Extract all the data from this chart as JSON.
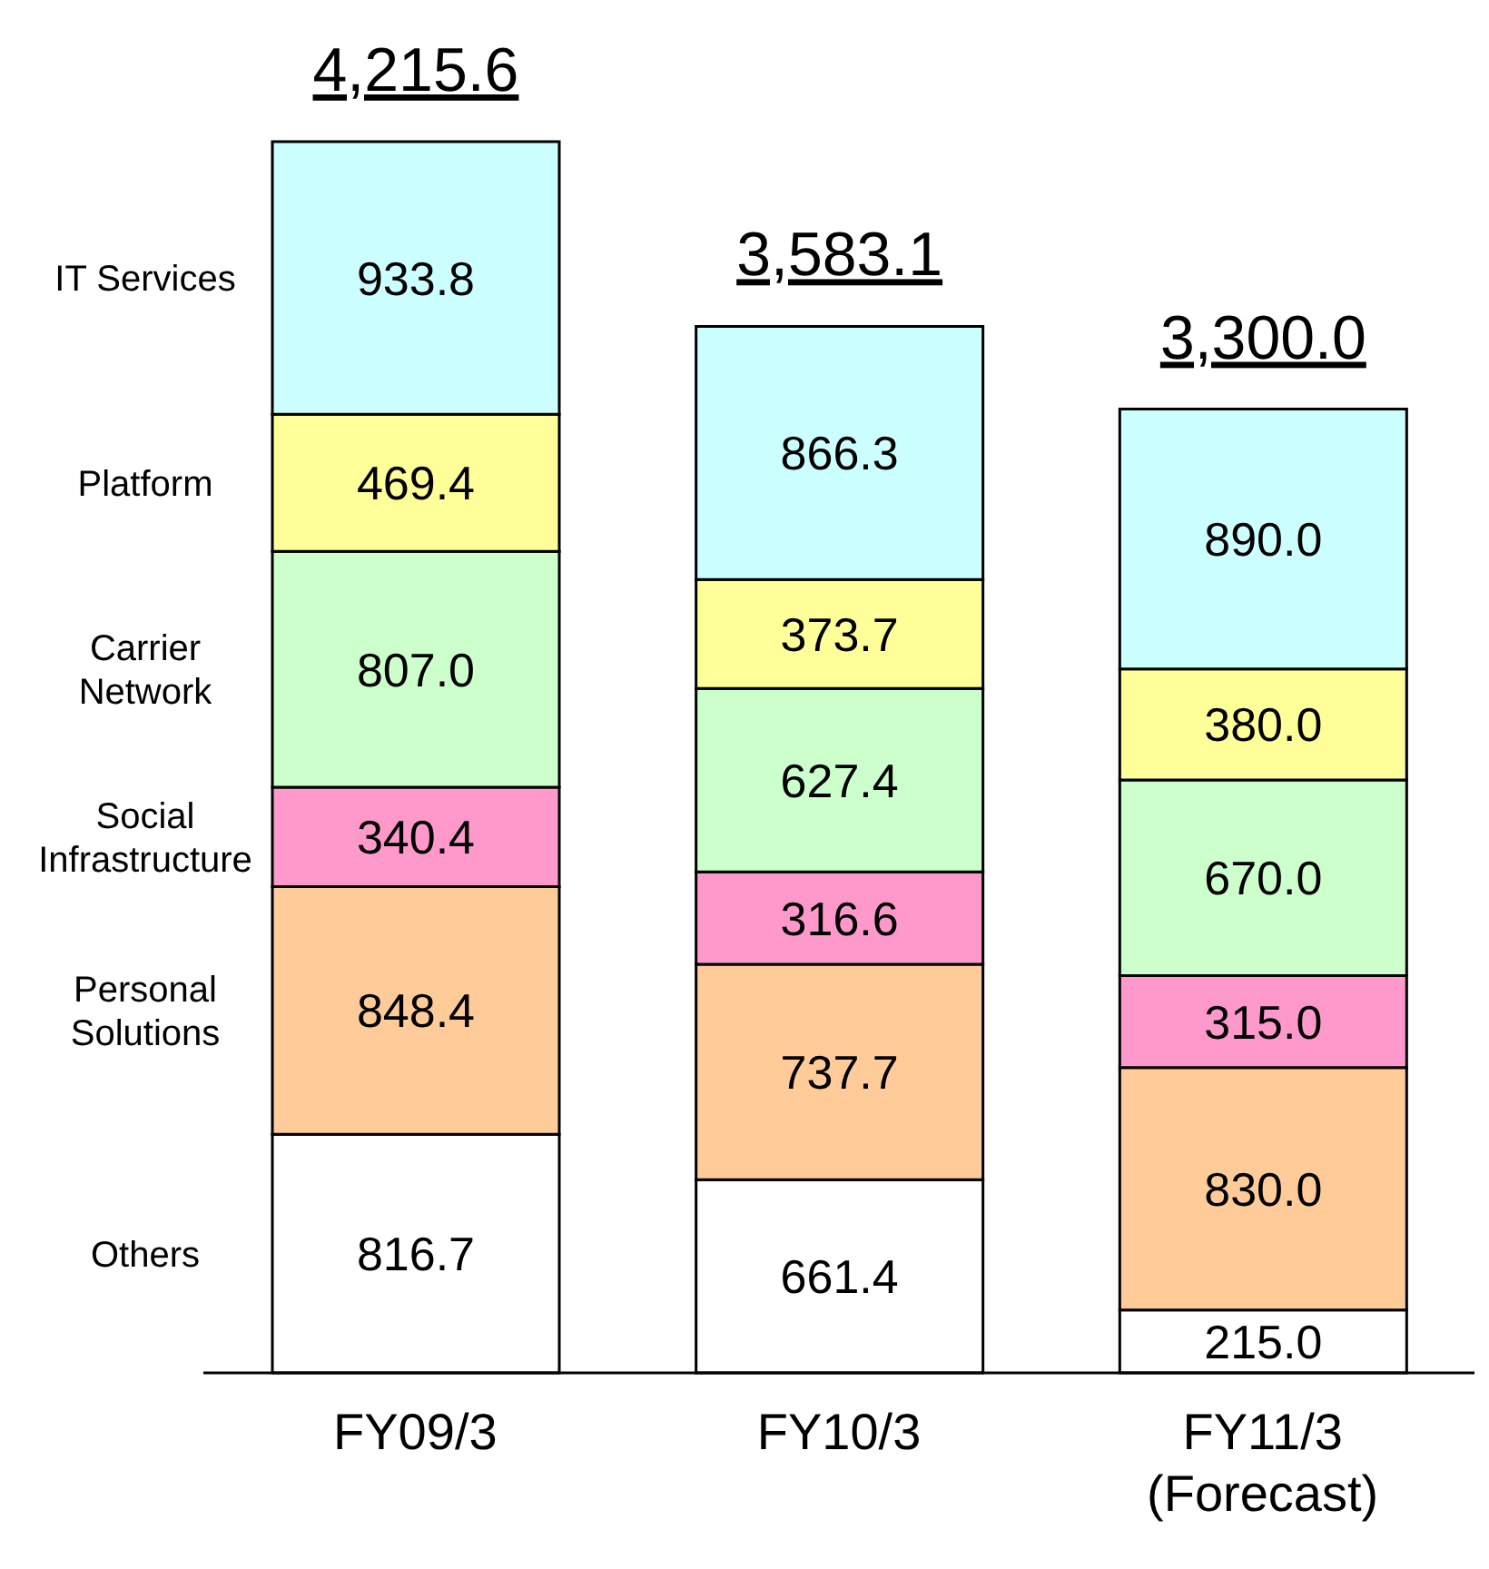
{
  "chart_data": {
    "type": "bar",
    "stacked": true,
    "categories": [
      "FY09/3",
      "FY10/3",
      "FY11/3\n(Forecast)"
    ],
    "series": [
      {
        "name": "Others",
        "color": "#ffffff",
        "values": [
          816.7,
          661.4,
          215.0
        ],
        "value_labels": [
          "816.7",
          "661.4",
          "215.0"
        ]
      },
      {
        "name": "Personal Solutions",
        "color": "#ffcc99",
        "values": [
          848.4,
          737.7,
          830.0
        ],
        "value_labels": [
          "848.4",
          "737.7",
          "830.0"
        ]
      },
      {
        "name": "Social Infrastructure",
        "color": "#ff99cc",
        "values": [
          340.4,
          316.6,
          315.0
        ],
        "value_labels": [
          "340.4",
          "316.6",
          "315.0"
        ]
      },
      {
        "name": "Carrier Network",
        "color": "#ccffcc",
        "values": [
          807.0,
          627.4,
          670.0
        ],
        "value_labels": [
          "807.0",
          "627.4",
          "670.0"
        ]
      },
      {
        "name": "Platform",
        "color": "#ffff99",
        "values": [
          469.4,
          373.7,
          380.0
        ],
        "value_labels": [
          "469.4",
          "373.7",
          "380.0"
        ]
      },
      {
        "name": "IT Services",
        "color": "#ccffff",
        "values": [
          933.8,
          866.3,
          890.0
        ],
        "value_labels": [
          "933.8",
          "866.3",
          "890.0"
        ]
      }
    ],
    "totals": [
      "4,215.6",
      "3,583.1",
      "3,300.0"
    ]
  }
}
